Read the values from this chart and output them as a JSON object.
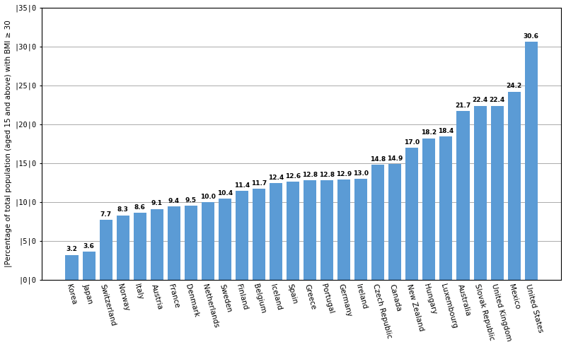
{
  "categories": [
    "Korea",
    "Japan",
    "Switzerland",
    "Norway",
    "Italy",
    "Austria",
    "France",
    "Denmark",
    "Netherlands",
    "Sweden",
    "Finland",
    "Belgium",
    "Iceland",
    "Spain",
    "Greece",
    "Portugal",
    "Germany",
    "Ireland",
    "Czech Republic",
    "Canada",
    "New Zealand",
    "Hungary",
    "Luxembourg",
    "Australia",
    "Slovak Republic",
    "United Kingdom",
    "Mexico",
    "United States"
  ],
  "values": [
    3.2,
    3.6,
    7.7,
    8.3,
    8.6,
    9.1,
    9.4,
    9.5,
    10.0,
    10.4,
    11.4,
    11.7,
    12.4,
    12.6,
    12.8,
    12.8,
    12.9,
    13.0,
    14.8,
    14.9,
    17.0,
    18.2,
    18.4,
    21.7,
    22.4,
    22.4,
    24.2,
    30.6
  ],
  "bar_color": "#5B9BD5",
  "ylabel": "|Percentage of total population (aged 15 and above) with BMI ≥ 30",
  "ylim": [
    0,
    35
  ],
  "yticks": [
    0,
    5,
    10,
    15,
    20,
    25,
    30,
    35
  ],
  "ytick_labels": [
    "|0|0",
    "|5|0",
    "|10|0",
    "|15|0",
    "|20|0",
    "|25|0",
    "|30|0",
    "|35|0"
  ],
  "background_color": "#ffffff",
  "grid_color": "#aaaaaa",
  "bar_label_fontsize": 6.5,
  "axis_label_fontsize": 7.5,
  "tick_fontsize": 7.5,
  "xticklabel_rotation": -75
}
